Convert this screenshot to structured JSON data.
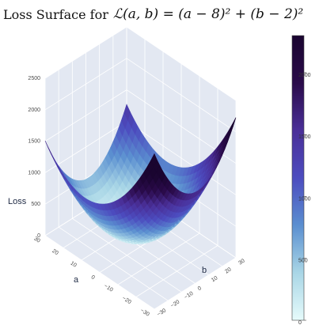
{
  "title_prefix": "Loss Surface for",
  "title_formula": "ℒ(a, b) = (a − 8)² + (b − 2)²",
  "colors": {
    "scene_bg": "#e3e8f2",
    "grid": "#ffffff",
    "colorscale": [
      "#e6fbfb",
      "#a9d6e6",
      "#5b8fd0",
      "#4c4cbf",
      "#4a2f98",
      "#2a0b4a",
      "#1a0530"
    ]
  },
  "chart_data": {
    "type": "surface",
    "function": "(a-8)^2 + (b-2)^2",
    "a_range": [
      -30,
      30
    ],
    "b_range": [
      -30,
      30
    ],
    "z_range": [
      0,
      2500
    ],
    "minimum": {
      "a": 8,
      "b": 2,
      "loss": 0
    },
    "axes": {
      "a": {
        "label": "a",
        "ticks": [
          "30",
          "20",
          "10",
          "0",
          "−10",
          "−20",
          "−30"
        ]
      },
      "b": {
        "label": "b",
        "ticks": [
          "−30",
          "−20",
          "−10",
          "0",
          "10",
          "20",
          "30"
        ]
      },
      "z": {
        "label": "Loss",
        "ticks": [
          "0",
          "500",
          "1000",
          "1500",
          "2000",
          "2500"
        ]
      }
    },
    "colorbar": {
      "range": [
        0,
        2000
      ],
      "ticks": [
        "0",
        "500",
        "1000",
        "1500",
        "2000"
      ]
    }
  }
}
